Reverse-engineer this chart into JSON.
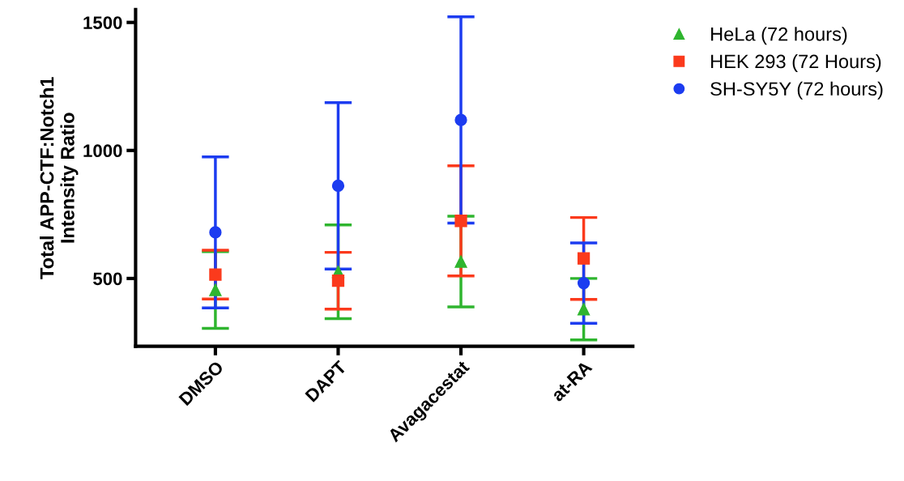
{
  "chart_data": {
    "type": "scatter",
    "ylabel": "Total APP-CTF:Notch1\nIntensity Ratio",
    "categories": [
      "DMSO",
      "DAPT",
      "Avagacestat",
      "at-RA"
    ],
    "series": [
      {
        "name": "HeLa (72 hours)",
        "color": "#2fb52f",
        "marker": "triangle",
        "values": [
          455,
          526,
          566,
          380
        ],
        "errors": [
          150,
          183,
          177,
          120
        ]
      },
      {
        "name": "HEK 293 (72 Hours)",
        "color": "#fb3a1c",
        "marker": "square",
        "values": [
          515,
          491,
          725,
          578
        ],
        "errors": [
          95,
          111,
          215,
          160
        ]
      },
      {
        "name": "SH-SY5Y (72 hours)",
        "color": "#1c3cf0",
        "marker": "circle",
        "values": [
          680,
          862,
          1119,
          482
        ],
        "errors": [
          295,
          325,
          403,
          157
        ]
      }
    ],
    "ylim": [
      235,
      1550
    ],
    "yticks": [
      500,
      1000,
      1500
    ],
    "grid": false,
    "legend": "top right"
  }
}
